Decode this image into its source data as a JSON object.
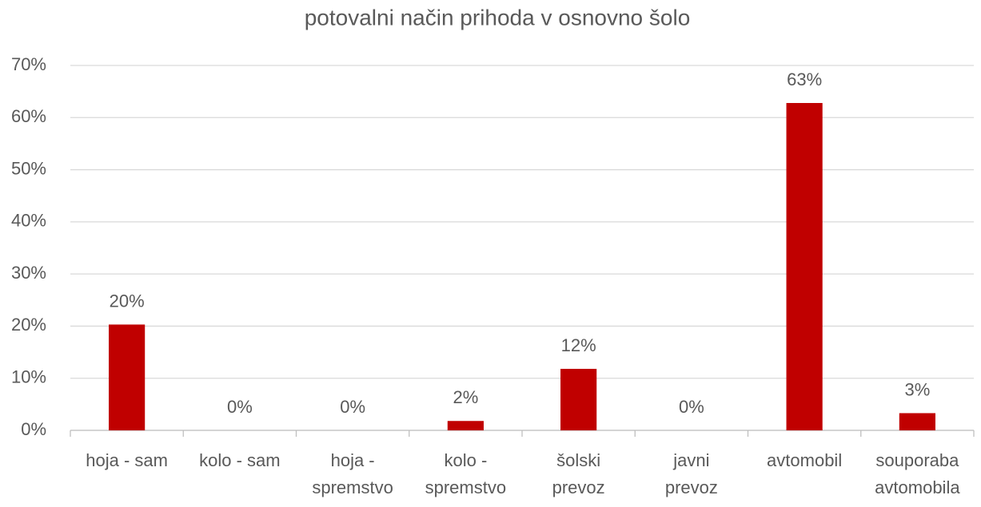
{
  "chart_data": {
    "type": "bar",
    "title": "potovalni način prihoda v osnovno šolo",
    "categories": [
      "hoja - sam",
      "kolo - sam",
      "hoja - spremstvo",
      "kolo - spremstvo",
      "šolski prevoz",
      "javni prevoz",
      "avtomobil",
      "souporaba avtomobila"
    ],
    "values": [
      20.3,
      0,
      0,
      1.8,
      11.8,
      0,
      62.8,
      3.3
    ],
    "value_labels": [
      "20%",
      "0%",
      "0%",
      "2%",
      "12%",
      "0%",
      "63%",
      "3%"
    ],
    "color": "#c00000",
    "ylim": [
      0,
      70
    ],
    "yticks": [
      {
        "value": 0,
        "label": "0%"
      },
      {
        "value": 10,
        "label": "10%"
      },
      {
        "value": 20,
        "label": "20%"
      },
      {
        "value": 30,
        "label": "30%"
      },
      {
        "value": 40,
        "label": "40%"
      },
      {
        "value": 50,
        "label": "50%"
      },
      {
        "value": 60,
        "label": "60%"
      },
      {
        "value": 70,
        "label": "70%"
      }
    ],
    "grid": true
  }
}
